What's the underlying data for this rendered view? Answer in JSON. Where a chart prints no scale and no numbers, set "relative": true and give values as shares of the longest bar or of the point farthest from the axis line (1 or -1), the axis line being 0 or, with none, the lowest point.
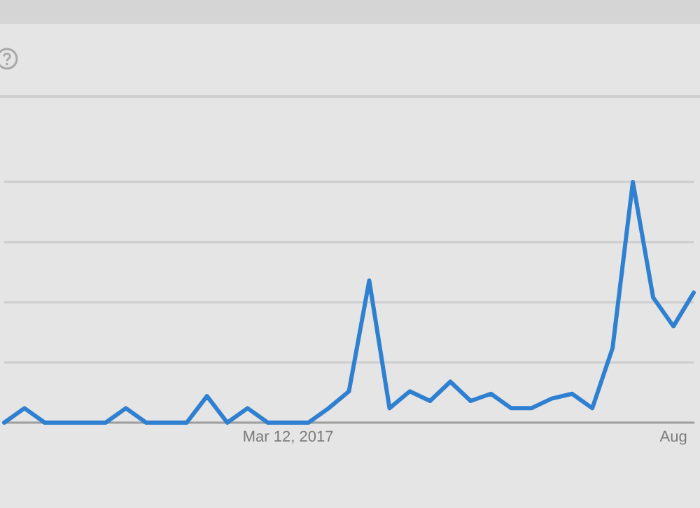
{
  "chart_data": {
    "type": "line",
    "relative": true,
    "grid": "y",
    "marker": "none",
    "line_style": "solid",
    "categories": [
      null,
      null,
      null,
      null,
      null,
      null,
      null,
      null,
      null,
      null,
      null,
      null,
      null,
      null,
      "Mar 12, 2017",
      null,
      null,
      null,
      null,
      null,
      null,
      null,
      null,
      null,
      null,
      null,
      null,
      null,
      null,
      null,
      null,
      null,
      null,
      "Aug",
      null
    ],
    "series": [
      {
        "color": "#2f80d1",
        "values": [
          0,
          0.06,
          0,
          0,
          0,
          0,
          0.06,
          0,
          0,
          0,
          0.11,
          0,
          0.06,
          0,
          0,
          0,
          0.06,
          0.13,
          0.59,
          0.06,
          0.13,
          0.09,
          0.17,
          0.09,
          0.12,
          0.06,
          0.06,
          0.1,
          0.12,
          0.06,
          0.31,
          1,
          0.52,
          0.4,
          0.54
        ]
      }
    ]
  }
}
